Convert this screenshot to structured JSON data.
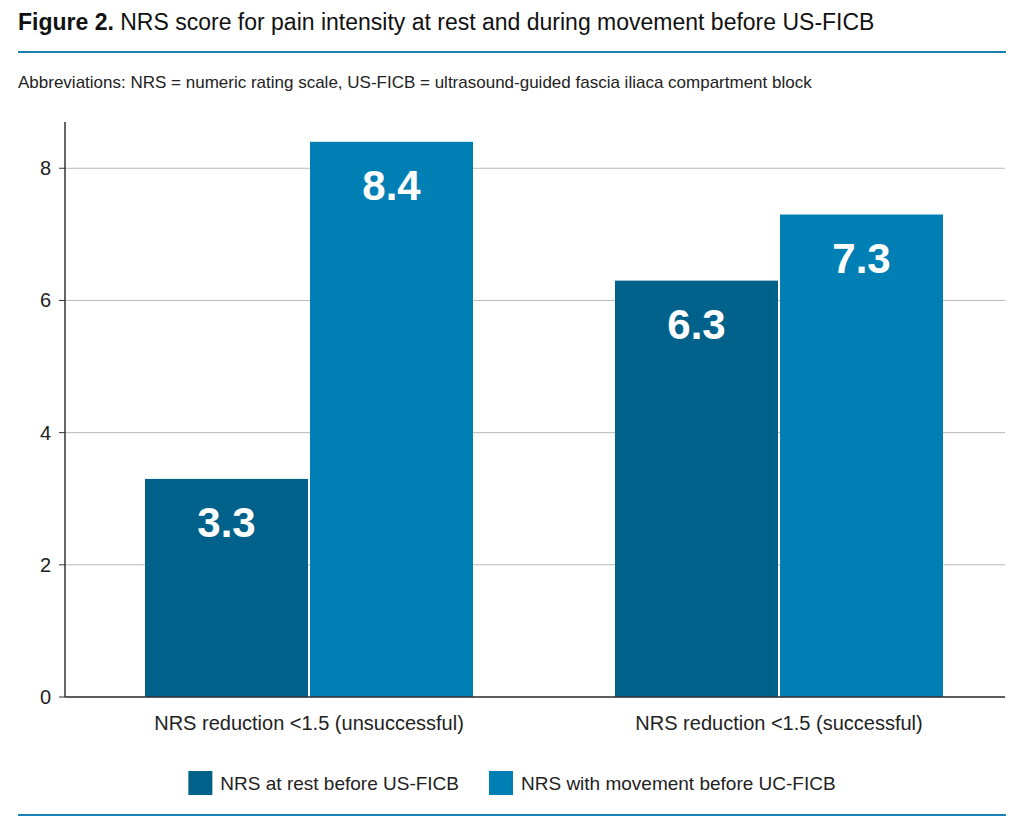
{
  "chart_data": {
    "type": "bar",
    "title": "Figure 2. NRS score for pain intensity at rest and during movement before US-FICB",
    "subtitle": "Abbreviations: NRS = numeric rating scale, US-FICB = ultrasound-guided fascia iliaca compartment block",
    "categories": [
      "NRS reduction <1.5 (unsuccessful)",
      "NRS reduction <1.5 (successful)"
    ],
    "series": [
      {
        "name": "NRS at rest before US-FICB",
        "color": "#00628b",
        "values": [
          3.3,
          6.3
        ]
      },
      {
        "name": "NRS with movement before UC-FICB",
        "color": "#007fb5",
        "values": [
          8.4,
          7.3
        ]
      }
    ],
    "ylim": [
      0,
      8.7
    ],
    "yticks": [
      0,
      2,
      4,
      6,
      8
    ],
    "grid": true,
    "data_labels": true,
    "legend": "bottom"
  }
}
